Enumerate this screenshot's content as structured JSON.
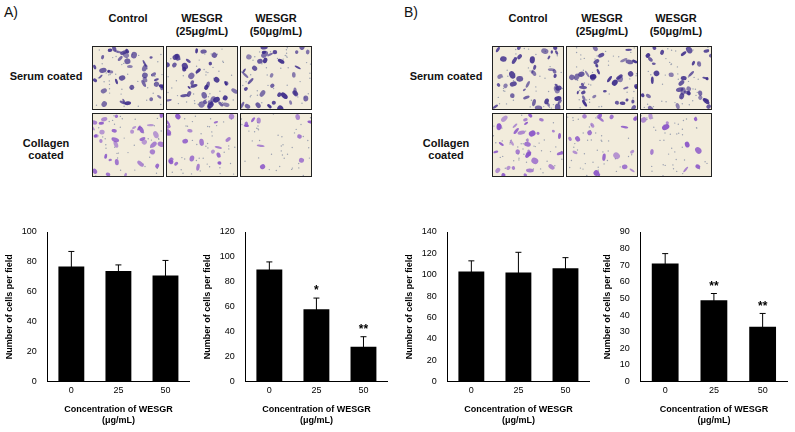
{
  "panels": [
    {
      "label": "A)",
      "columns": [
        [
          "Control"
        ],
        [
          "WESGR",
          "(25μg/mL)"
        ],
        [
          "WESGR",
          "(50μg/mL)"
        ]
      ],
      "rows": [
        "Serum coated",
        "Collagen coated"
      ]
    },
    {
      "label": "B)",
      "columns": [
        [
          "Control"
        ],
        [
          "WESGR",
          "(25μg/mL)"
        ],
        [
          "WESGR",
          "(50μg/mL)"
        ]
      ],
      "rows": [
        "Serum coated",
        "Collagen coated"
      ]
    }
  ],
  "chart_data": [
    {
      "type": "bar",
      "categories": [
        "0",
        "25",
        "50"
      ],
      "values": [
        77,
        74,
        71
      ],
      "errors": [
        10,
        4,
        10
      ],
      "significance": [
        null,
        null,
        null
      ],
      "color": "#000000",
      "ylim": [
        0,
        100
      ],
      "yticks": [
        0,
        20,
        40,
        60,
        80,
        100
      ],
      "grid": false,
      "y_label": "Number of cells per field",
      "x_label": [
        "Concentration of WESGR",
        "(μg/mL)"
      ]
    },
    {
      "type": "bar",
      "categories": [
        "0",
        "25",
        "50"
      ],
      "values": [
        90,
        58,
        28
      ],
      "errors": [
        6,
        9,
        8
      ],
      "significance": [
        null,
        "*",
        "**"
      ],
      "color": "#000000",
      "ylim": [
        0,
        120
      ],
      "yticks": [
        0,
        20,
        40,
        60,
        80,
        100,
        120
      ],
      "grid": false,
      "y_label": "Number of cells per field",
      "x_label": [
        "Concentration of WESGR",
        "(μg/mL)"
      ]
    },
    {
      "type": "bar",
      "categories": [
        "0",
        "25",
        "50"
      ],
      "values": [
        103,
        102,
        106
      ],
      "errors": [
        10,
        19,
        10
      ],
      "significance": [
        null,
        null,
        null
      ],
      "color": "#000000",
      "ylim": [
        0,
        140
      ],
      "yticks": [
        0,
        20,
        40,
        60,
        80,
        100,
        120,
        140
      ],
      "grid": false,
      "y_label": "Number of cells per field",
      "x_label": [
        "Concentration of WESGR",
        "(μg/mL)"
      ]
    },
    {
      "type": "bar",
      "categories": [
        "0",
        "25",
        "50"
      ],
      "values": [
        71,
        49,
        33
      ],
      "errors": [
        6,
        4,
        8
      ],
      "significance": [
        null,
        "**",
        "**"
      ],
      "color": "#000000",
      "ylim": [
        0,
        90
      ],
      "yticks": [
        0,
        10,
        20,
        30,
        40,
        50,
        60,
        70,
        80,
        90
      ],
      "grid": false,
      "y_label": "Number of cells per field",
      "x_label": [
        "Concentration of WESGR",
        "(μg/mL)"
      ]
    }
  ]
}
